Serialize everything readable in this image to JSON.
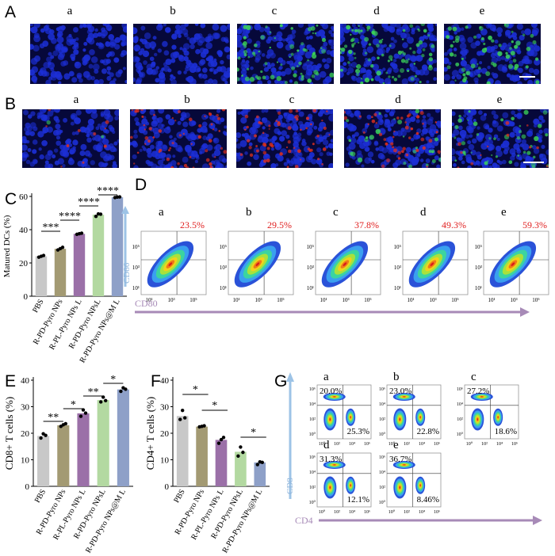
{
  "panel_letters": [
    "A",
    "B",
    "C",
    "D",
    "E",
    "F",
    "G"
  ],
  "sublabels": [
    "a",
    "b",
    "c",
    "d",
    "e"
  ],
  "colors": {
    "nucleus_blue": "#1c2fd6",
    "marker_green": "#3bd45a",
    "marker_red": "#e0301e",
    "pct_red": "#e02020",
    "arrow_purple": "#a78ab7",
    "arrow_blue": "#9dc3e6",
    "bar_colors": [
      "#c8c8c8",
      "#a39a73",
      "#9b70a8",
      "#b3d9a1",
      "#8ea0c8"
    ]
  },
  "panel_c": {
    "chart_data": {
      "type": "bar",
      "ylabel": "Matured DCs (%)",
      "categories": [
        "PBS",
        "R-PD-Pyro NPs",
        "R-PL-Pyro NPs L",
        "R-PD-Pyro NPsL",
        "R-PD-Pyro NPs@M L"
      ],
      "values": [
        24,
        28.5,
        37.5,
        49,
        59.5
      ],
      "points": [
        [
          23.5,
          24,
          24.5
        ],
        [
          27.8,
          28.6,
          29.4
        ],
        [
          37.2,
          37.6,
          37.9
        ],
        [
          48,
          49.5,
          49.3
        ],
        [
          59.3,
          59.6,
          59.7
        ]
      ],
      "ylim": [
        0,
        60
      ],
      "yticks": [
        0,
        20,
        40,
        60
      ],
      "significance": [
        "***",
        "****",
        "****",
        "****"
      ]
    }
  },
  "panel_d": {
    "percentages": [
      "23.5%",
      "29.5%",
      "37.8%",
      "49.3%",
      "59.3%"
    ],
    "yaxis_label": "CD86",
    "xaxis_label": "CD80",
    "tick_labels": [
      "10¹",
      "10³",
      "10⁵"
    ]
  },
  "panel_e": {
    "chart_data": {
      "type": "bar",
      "ylabel": "CD8+ T cells (%)",
      "categories": [
        "PBS",
        "R-PD-Pyro NPs",
        "R-PL-Pyro NPs L",
        "R-PD-Pyro NPsL",
        "R-PD-Pyro NPs@M L"
      ],
      "values": [
        19,
        23,
        27.5,
        32.5,
        36.5
      ],
      "points": [
        [
          18.2,
          19.8,
          19.2
        ],
        [
          22.6,
          23.2,
          23.6
        ],
        [
          26.4,
          28.8,
          27.6
        ],
        [
          31.8,
          33.6,
          32.3
        ],
        [
          35.8,
          37.1,
          36.6
        ]
      ],
      "ylim": [
        0,
        40
      ],
      "yticks": [
        0,
        10,
        20,
        30,
        40
      ],
      "significance": [
        "**",
        "*",
        "**",
        "*"
      ]
    }
  },
  "panel_f": {
    "chart_data": {
      "type": "bar",
      "ylabel": "CD4+ T cells (%)",
      "categories": [
        "PBS",
        "R-PD-Pyro NPs",
        "R-PL-Pyro NPs L",
        "R-PD-Pyro NPsL",
        "R-PD-Pyro NPs@M L"
      ],
      "values": [
        26.5,
        22.5,
        17.5,
        13,
        9
      ],
      "points": [
        [
          25.2,
          28.6,
          25.8
        ],
        [
          22.4,
          22.6,
          22.8
        ],
        [
          16.2,
          17.6,
          18.4
        ],
        [
          11.4,
          14.8,
          12.8
        ],
        [
          8.2,
          9.2,
          9.0
        ]
      ],
      "ylim": [
        0,
        40
      ],
      "yticks": [
        0,
        10,
        20,
        30,
        40
      ],
      "significance": [
        "*",
        "*",
        "*"
      ]
    }
  },
  "panel_g": {
    "top_left": [
      "20.0%",
      "23.0%",
      "27.2%",
      "31.3%",
      "36.7%"
    ],
    "bottom_right": [
      "25.3%",
      "22.8%",
      "18.6%",
      "12.1%",
      "8.46%"
    ],
    "yaxis_label": "CD8",
    "xaxis_label": "CD4",
    "tick_labels": [
      "10⁰",
      "10²",
      "10⁴",
      "10⁶"
    ]
  }
}
